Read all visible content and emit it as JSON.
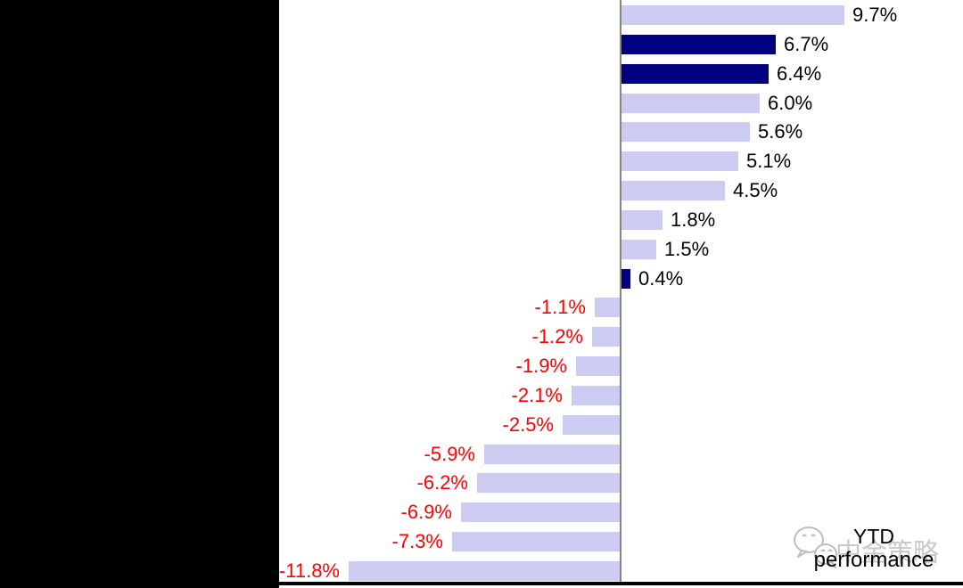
{
  "chart_data": {
    "type": "bar",
    "orientation": "horizontal",
    "title": "",
    "xlabel": "",
    "ylabel": "",
    "values": [
      9.7,
      6.7,
      6.4,
      6.0,
      5.6,
      5.1,
      4.5,
      1.8,
      1.5,
      0.4,
      -1.1,
      -1.2,
      -1.9,
      -2.1,
      -2.5,
      -5.9,
      -6.2,
      -6.9,
      -7.3,
      -11.8
    ],
    "labels": [
      "9.7%",
      "6.7%",
      "6.4%",
      "6.0%",
      "5.6%",
      "5.1%",
      "4.5%",
      "1.8%",
      "1.5%",
      "0.4%",
      "-1.1%",
      "-1.2%",
      "-1.9%",
      "-2.1%",
      "-2.5%",
      "-5.9%",
      "-6.2%",
      "-6.9%",
      "-7.3%",
      "-11.8%"
    ],
    "highlight_indices": [
      1,
      2,
      9
    ],
    "colors": {
      "bar_default": "#ccccf2",
      "bar_highlight": "#000080",
      "positive_label": "#000000",
      "negative_label": "#ff0000",
      "zero_axis_line": "#848484",
      "baseline": "#000000",
      "masked_region": "#000000"
    },
    "grid": false,
    "legend": false,
    "annotation": "YTD performance"
  },
  "watermark": {
    "logo": "wechat-logo-icon",
    "brand": "中金策略",
    "caption_line1": "YTD",
    "caption_line2": "performance"
  }
}
